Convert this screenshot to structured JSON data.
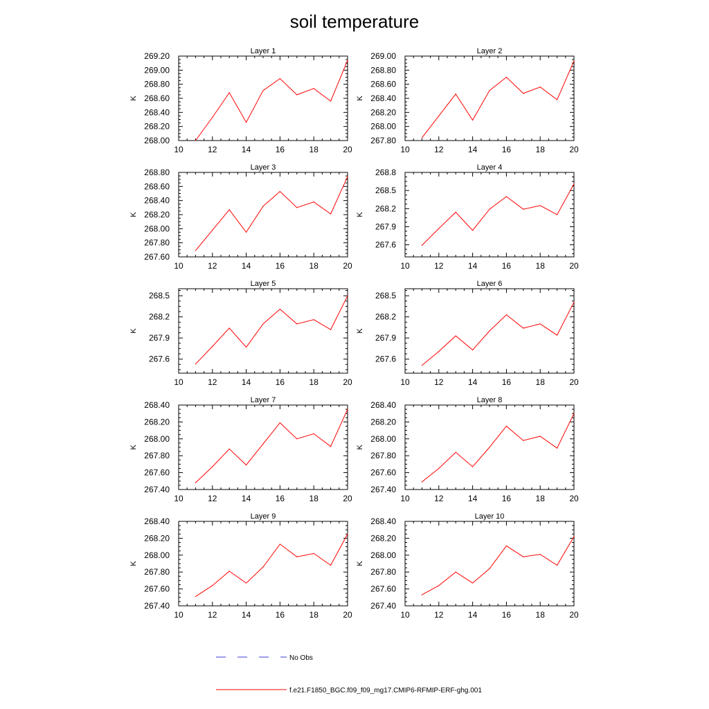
{
  "title": "soil temperature",
  "legend": {
    "entries": [
      {
        "label": "No Obs",
        "color": "#3b3bd6",
        "style": "dashed"
      },
      {
        "label": "f.e21.F1850_BGC.f09_f09_mg17.CMIP6-RFMIP-ERF-ghg.001",
        "color": "#ff0000",
        "style": "solid"
      }
    ]
  },
  "chart_data": [
    {
      "type": "line",
      "title": "Layer 1",
      "ylabel": "K",
      "xlim": [
        10,
        20
      ],
      "ylim": [
        268.0,
        269.2
      ],
      "xticks": [
        10,
        12,
        14,
        16,
        18,
        20
      ],
      "yticks": [
        268.0,
        268.2,
        268.4,
        268.6,
        268.8,
        269.0,
        269.2
      ],
      "ytick_decimals": 2,
      "x": [
        11,
        12,
        13,
        14,
        15,
        16,
        17,
        18,
        19,
        20
      ],
      "series": [
        {
          "name": "f.e21.F1850_BGC.f09_f09_mg17.CMIP6-RFMIP-ERF-ghg.001",
          "color": "#ff0000",
          "values": [
            268.0,
            268.33,
            268.68,
            268.26,
            268.71,
            268.88,
            268.65,
            268.74,
            268.56,
            269.14
          ]
        }
      ]
    },
    {
      "type": "line",
      "title": "Layer 2",
      "ylabel": "K",
      "xlim": [
        10,
        20
      ],
      "ylim": [
        267.8,
        269.0
      ],
      "xticks": [
        10,
        12,
        14,
        16,
        18,
        20
      ],
      "yticks": [
        267.8,
        268.0,
        268.2,
        268.4,
        268.6,
        268.8,
        269.0
      ],
      "ytick_decimals": 2,
      "x": [
        11,
        12,
        13,
        14,
        15,
        16,
        17,
        18,
        19,
        20
      ],
      "series": [
        {
          "name": "f.e21.F1850_BGC.f09_f09_mg17.CMIP6-RFMIP-ERF-ghg.001",
          "color": "#ff0000",
          "values": [
            267.84,
            268.15,
            268.46,
            268.09,
            268.51,
            268.7,
            268.47,
            268.56,
            268.38,
            268.93
          ]
        }
      ]
    },
    {
      "type": "line",
      "title": "Layer 3",
      "ylabel": "K",
      "xlim": [
        10,
        20
      ],
      "ylim": [
        267.6,
        268.8
      ],
      "xticks": [
        10,
        12,
        14,
        16,
        18,
        20
      ],
      "yticks": [
        267.6,
        267.8,
        268.0,
        268.2,
        268.4,
        268.6,
        268.8
      ],
      "ytick_decimals": 2,
      "x": [
        11,
        12,
        13,
        14,
        15,
        16,
        17,
        18,
        19,
        20
      ],
      "series": [
        {
          "name": "f.e21.F1850_BGC.f09_f09_mg17.CMIP6-RFMIP-ERF-ghg.001",
          "color": "#ff0000",
          "values": [
            267.69,
            267.98,
            268.27,
            267.95,
            268.32,
            268.53,
            268.3,
            268.38,
            268.21,
            268.74
          ]
        }
      ]
    },
    {
      "type": "line",
      "title": "Layer 4",
      "ylabel": "K",
      "xlim": [
        10,
        20
      ],
      "ylim": [
        267.4,
        268.8
      ],
      "xticks": [
        10,
        12,
        14,
        16,
        18,
        20
      ],
      "yticks": [
        267.6,
        267.9,
        268.2,
        268.5,
        268.8
      ],
      "ytick_decimals": 1,
      "x": [
        11,
        12,
        13,
        14,
        15,
        16,
        17,
        18,
        19,
        20
      ],
      "series": [
        {
          "name": "f.e21.F1850_BGC.f09_f09_mg17.CMIP6-RFMIP-ERF-ghg.001",
          "color": "#ff0000",
          "values": [
            267.59,
            267.87,
            268.14,
            267.84,
            268.19,
            268.4,
            268.19,
            268.25,
            268.1,
            268.61
          ]
        }
      ]
    },
    {
      "type": "line",
      "title": "Layer 5",
      "ylabel": "K",
      "xlim": [
        10,
        20
      ],
      "ylim": [
        267.4,
        268.6
      ],
      "xticks": [
        10,
        12,
        14,
        16,
        18,
        20
      ],
      "yticks": [
        267.6,
        267.9,
        268.2,
        268.5
      ],
      "ytick_decimals": 1,
      "x": [
        11,
        12,
        13,
        14,
        15,
        16,
        17,
        18,
        19,
        20
      ],
      "series": [
        {
          "name": "f.e21.F1850_BGC.f09_f09_mg17.CMIP6-RFMIP-ERF-ghg.001",
          "color": "#ff0000",
          "values": [
            267.53,
            267.78,
            268.04,
            267.77,
            268.1,
            268.31,
            268.1,
            268.16,
            268.02,
            268.5
          ]
        }
      ]
    },
    {
      "type": "line",
      "title": "Layer 6",
      "ylabel": "K",
      "xlim": [
        10,
        20
      ],
      "ylim": [
        267.4,
        268.6
      ],
      "xticks": [
        10,
        12,
        14,
        16,
        18,
        20
      ],
      "yticks": [
        267.6,
        267.9,
        268.2,
        268.5
      ],
      "ytick_decimals": 1,
      "x": [
        11,
        12,
        13,
        14,
        15,
        16,
        17,
        18,
        19,
        20
      ],
      "series": [
        {
          "name": "f.e21.F1850_BGC.f09_f09_mg17.CMIP6-RFMIP-ERF-ghg.001",
          "color": "#ff0000",
          "values": [
            267.51,
            267.71,
            267.93,
            267.73,
            268.0,
            268.23,
            268.04,
            268.1,
            267.94,
            268.41
          ]
        }
      ]
    },
    {
      "type": "line",
      "title": "Layer 7",
      "ylabel": "K",
      "xlim": [
        10,
        20
      ],
      "ylim": [
        267.4,
        268.4
      ],
      "xticks": [
        10,
        12,
        14,
        16,
        18,
        20
      ],
      "yticks": [
        267.4,
        267.6,
        267.8,
        268.0,
        268.2,
        268.4
      ],
      "ytick_decimals": 2,
      "x": [
        11,
        12,
        13,
        14,
        15,
        16,
        17,
        18,
        19,
        20
      ],
      "series": [
        {
          "name": "f.e21.F1850_BGC.f09_f09_mg17.CMIP6-RFMIP-ERF-ghg.001",
          "color": "#ff0000",
          "values": [
            267.48,
            267.67,
            267.88,
            267.69,
            267.94,
            268.19,
            268.0,
            268.06,
            267.91,
            268.35
          ]
        }
      ]
    },
    {
      "type": "line",
      "title": "Layer 8",
      "ylabel": "K",
      "xlim": [
        10,
        20
      ],
      "ylim": [
        267.4,
        268.4
      ],
      "xticks": [
        10,
        12,
        14,
        16,
        18,
        20
      ],
      "yticks": [
        267.4,
        267.6,
        267.8,
        268.0,
        268.2,
        268.4
      ],
      "ytick_decimals": 2,
      "x": [
        11,
        12,
        13,
        14,
        15,
        16,
        17,
        18,
        19,
        20
      ],
      "series": [
        {
          "name": "f.e21.F1850_BGC.f09_f09_mg17.CMIP6-RFMIP-ERF-ghg.001",
          "color": "#ff0000",
          "values": [
            267.49,
            267.65,
            267.84,
            267.67,
            267.9,
            268.15,
            267.98,
            268.03,
            267.89,
            268.3
          ]
        }
      ]
    },
    {
      "type": "line",
      "title": "Layer 9",
      "ylabel": "K",
      "xlim": [
        10,
        20
      ],
      "ylim": [
        267.4,
        268.4
      ],
      "xticks": [
        10,
        12,
        14,
        16,
        18,
        20
      ],
      "yticks": [
        267.4,
        267.6,
        267.8,
        268.0,
        268.2,
        268.4
      ],
      "ytick_decimals": 2,
      "x": [
        11,
        12,
        13,
        14,
        15,
        16,
        17,
        18,
        19,
        20
      ],
      "series": [
        {
          "name": "f.e21.F1850_BGC.f09_f09_mg17.CMIP6-RFMIP-ERF-ghg.001",
          "color": "#ff0000",
          "values": [
            267.51,
            267.64,
            267.81,
            267.67,
            267.86,
            268.13,
            267.98,
            268.02,
            267.88,
            268.25
          ]
        }
      ]
    },
    {
      "type": "line",
      "title": "Layer 10",
      "ylabel": "K",
      "xlim": [
        10,
        20
      ],
      "ylim": [
        267.4,
        268.4
      ],
      "xticks": [
        10,
        12,
        14,
        16,
        18,
        20
      ],
      "yticks": [
        267.4,
        267.6,
        267.8,
        268.0,
        268.2,
        268.4
      ],
      "ytick_decimals": 2,
      "x": [
        11,
        12,
        13,
        14,
        15,
        16,
        17,
        18,
        19,
        20
      ],
      "series": [
        {
          "name": "f.e21.F1850_BGC.f09_f09_mg17.CMIP6-RFMIP-ERF-ghg.001",
          "color": "#ff0000",
          "values": [
            267.53,
            267.64,
            267.8,
            267.67,
            267.84,
            268.11,
            267.98,
            268.01,
            267.88,
            268.22
          ]
        }
      ]
    }
  ]
}
